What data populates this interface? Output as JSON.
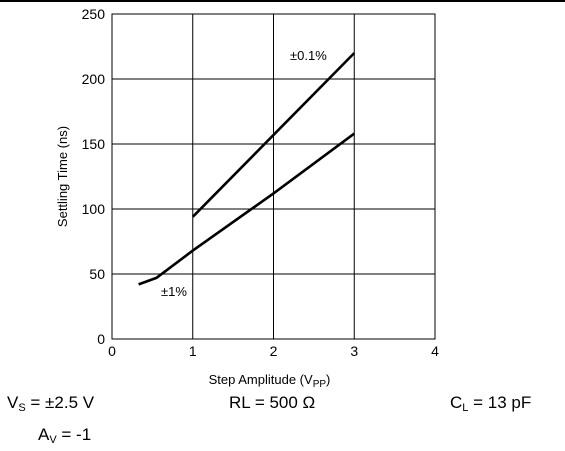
{
  "chart_data": {
    "type": "line",
    "xlabel": "Step Amplitude (V",
    "xlabel_sub": "PP",
    "xlabel_end": ")",
    "ylabel": "Settling Time (ns)",
    "xlim": [
      0,
      4
    ],
    "ylim": [
      0,
      250
    ],
    "x_ticks": [
      0,
      1,
      2,
      3,
      4
    ],
    "y_ticks": [
      0,
      50,
      100,
      150,
      200,
      250
    ],
    "grid": true,
    "series": [
      {
        "name": "±0.1%",
        "x": [
          1.0,
          3.0
        ],
        "y": [
          94,
          220
        ]
      },
      {
        "name": "±1%",
        "x": [
          0.33,
          0.55,
          1.0,
          2.0,
          3.0
        ],
        "y": [
          42,
          47,
          68,
          112,
          158
        ]
      }
    ]
  },
  "conditions": {
    "vs_main": "V",
    "vs_sub": "S",
    "vs_value": " = ±2.5 V",
    "rl": "RL = 500 Ω",
    "cl_main": "C",
    "cl_sub": "L",
    "cl_value": " = 13 pF",
    "av_main": "A",
    "av_sub": "V",
    "av_value": " = -1"
  }
}
